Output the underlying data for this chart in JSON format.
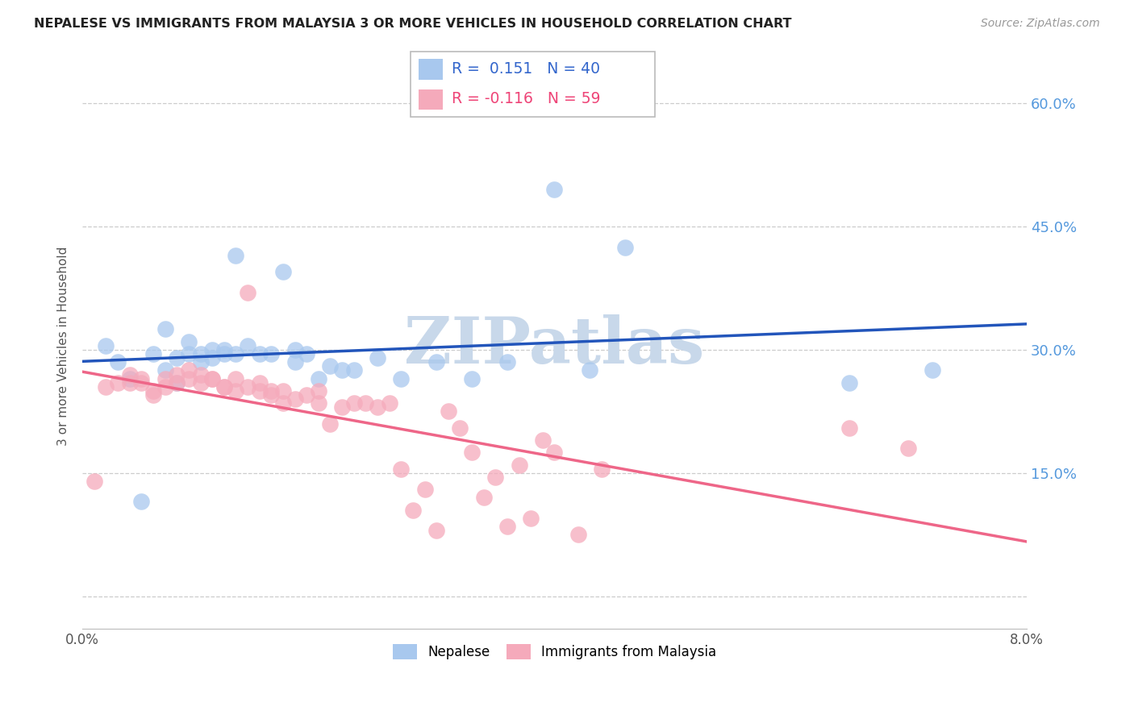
{
  "title": "NEPALESE VS IMMIGRANTS FROM MALAYSIA 3 OR MORE VEHICLES IN HOUSEHOLD CORRELATION CHART",
  "source": "Source: ZipAtlas.com",
  "ylabel": "3 or more Vehicles in Household",
  "y_ticks": [
    0.0,
    0.15,
    0.3,
    0.45,
    0.6
  ],
  "y_tick_labels": [
    "",
    "15.0%",
    "30.0%",
    "45.0%",
    "60.0%"
  ],
  "x_range": [
    0.0,
    0.08
  ],
  "y_range": [
    -0.04,
    0.65
  ],
  "legend_blue_r": "0.151",
  "legend_blue_n": "40",
  "legend_pink_r": "-0.116",
  "legend_pink_n": "59",
  "legend_label_blue": "Nepalese",
  "legend_label_pink": "Immigrants from Malaysia",
  "blue_color": "#A8C8EE",
  "pink_color": "#F5AABB",
  "blue_line_color": "#2255BB",
  "pink_line_color": "#EE6688",
  "watermark": "ZIPatlas",
  "watermark_color": "#C8D8EA",
  "nepalese_x": [
    0.002,
    0.003,
    0.004,
    0.005,
    0.006,
    0.007,
    0.007,
    0.008,
    0.008,
    0.009,
    0.009,
    0.01,
    0.01,
    0.011,
    0.011,
    0.012,
    0.012,
    0.013,
    0.013,
    0.014,
    0.015,
    0.016,
    0.017,
    0.018,
    0.018,
    0.019,
    0.02,
    0.021,
    0.022,
    0.023,
    0.025,
    0.027,
    0.03,
    0.033,
    0.036,
    0.04,
    0.043,
    0.046,
    0.065,
    0.072
  ],
  "nepalese_y": [
    0.305,
    0.285,
    0.265,
    0.115,
    0.295,
    0.275,
    0.325,
    0.29,
    0.26,
    0.295,
    0.31,
    0.285,
    0.295,
    0.29,
    0.3,
    0.3,
    0.295,
    0.415,
    0.295,
    0.305,
    0.295,
    0.295,
    0.395,
    0.3,
    0.285,
    0.295,
    0.265,
    0.28,
    0.275,
    0.275,
    0.29,
    0.265,
    0.285,
    0.265,
    0.285,
    0.495,
    0.275,
    0.425,
    0.26,
    0.275
  ],
  "malaysia_x": [
    0.001,
    0.002,
    0.003,
    0.004,
    0.004,
    0.005,
    0.005,
    0.006,
    0.006,
    0.007,
    0.007,
    0.008,
    0.008,
    0.009,
    0.009,
    0.01,
    0.01,
    0.011,
    0.011,
    0.012,
    0.012,
    0.013,
    0.013,
    0.014,
    0.014,
    0.015,
    0.015,
    0.016,
    0.016,
    0.017,
    0.017,
    0.018,
    0.019,
    0.02,
    0.02,
    0.021,
    0.022,
    0.023,
    0.024,
    0.025,
    0.026,
    0.027,
    0.028,
    0.029,
    0.03,
    0.031,
    0.032,
    0.033,
    0.034,
    0.035,
    0.036,
    0.037,
    0.038,
    0.039,
    0.04,
    0.042,
    0.044,
    0.065,
    0.07
  ],
  "malaysia_y": [
    0.14,
    0.255,
    0.26,
    0.26,
    0.27,
    0.26,
    0.265,
    0.245,
    0.25,
    0.255,
    0.265,
    0.26,
    0.27,
    0.265,
    0.275,
    0.27,
    0.26,
    0.265,
    0.265,
    0.255,
    0.255,
    0.25,
    0.265,
    0.255,
    0.37,
    0.26,
    0.25,
    0.245,
    0.25,
    0.25,
    0.235,
    0.24,
    0.245,
    0.25,
    0.235,
    0.21,
    0.23,
    0.235,
    0.235,
    0.23,
    0.235,
    0.155,
    0.105,
    0.13,
    0.08,
    0.225,
    0.205,
    0.175,
    0.12,
    0.145,
    0.085,
    0.16,
    0.095,
    0.19,
    0.175,
    0.075,
    0.155,
    0.205,
    0.18
  ]
}
